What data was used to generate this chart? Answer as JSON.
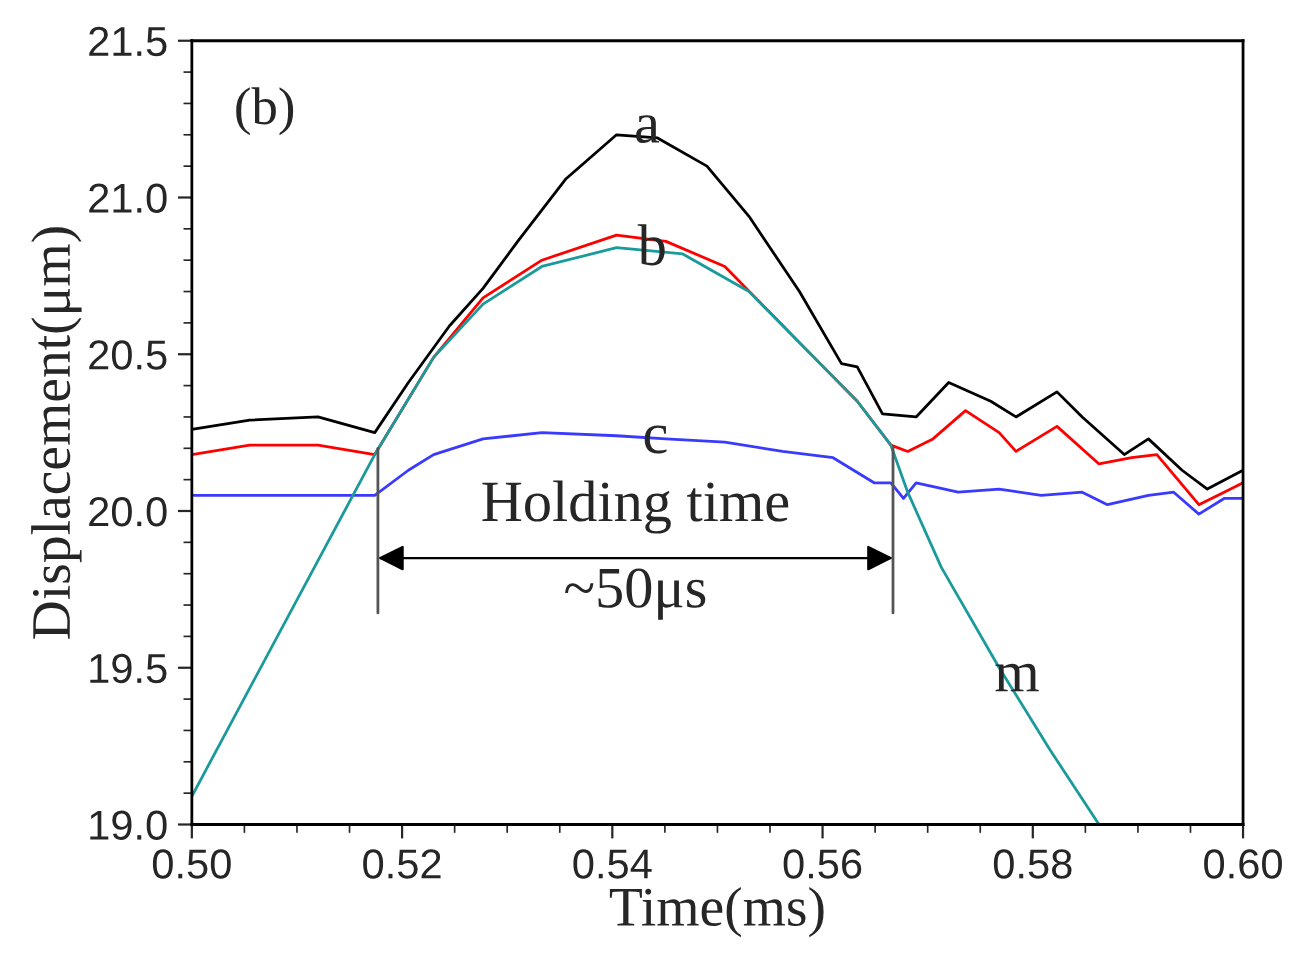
{
  "chart_data": {
    "type": "line",
    "xlabel": "Time(ms)",
    "ylabel": "Displacement(μm)",
    "xlim": [
      0.5,
      0.6
    ],
    "xticks": [
      {
        "value": 0.5,
        "label": "0.50"
      },
      {
        "value": 0.52,
        "label": "0.52"
      },
      {
        "value": 0.54,
        "label": "0.54"
      },
      {
        "value": 0.56,
        "label": "0.56"
      },
      {
        "value": 0.58,
        "label": "0.58"
      },
      {
        "value": 0.6,
        "label": "0.60"
      }
    ],
    "ylim": [
      19.0,
      21.5
    ],
    "yticks": [
      {
        "value": 19.0,
        "label": "19.0"
      },
      {
        "value": 19.5,
        "label": "19.5"
      },
      {
        "value": 20.0,
        "label": "20.0"
      },
      {
        "value": 20.5,
        "label": "20.5"
      },
      {
        "value": 21.0,
        "label": "21.0"
      },
      {
        "value": 21.5,
        "label": "21.5"
      }
    ],
    "grid": false,
    "legend": false,
    "marker": "none",
    "line_style": "solid",
    "series": [
      {
        "color": "#000000",
        "x": [
          0.5,
          0.5055,
          0.512,
          0.5174,
          0.5206,
          0.5245,
          0.5277,
          0.531,
          0.5356,
          0.5404,
          0.5443,
          0.549,
          0.553,
          0.5578,
          0.5618,
          0.5633,
          0.5657,
          0.5689,
          0.572,
          0.576,
          0.5784,
          0.5823,
          0.5847,
          0.5887,
          0.591,
          0.5942,
          0.5966,
          0.6
        ],
        "values": [
          20.26,
          20.29,
          20.3,
          20.25,
          20.41,
          20.59,
          20.71,
          20.86,
          21.06,
          21.2,
          21.19,
          21.1,
          20.94,
          20.7,
          20.47,
          20.46,
          20.31,
          20.3,
          20.41,
          20.35,
          20.3,
          20.38,
          20.3,
          20.18,
          20.23,
          20.13,
          20.07,
          20.13
        ]
      },
      {
        "color": "#ff0000",
        "x": [
          0.5,
          0.5055,
          0.512,
          0.5174,
          0.523,
          0.5277,
          0.5333,
          0.5404,
          0.5451,
          0.5507,
          0.5586,
          0.5633,
          0.5665,
          0.5681,
          0.5705,
          0.5736,
          0.5768,
          0.5784,
          0.5823,
          0.5863,
          0.5894,
          0.5918,
          0.5958,
          0.5982,
          0.6
        ],
        "values": [
          20.18,
          20.21,
          20.21,
          20.18,
          20.49,
          20.68,
          20.8,
          20.88,
          20.86,
          20.78,
          20.51,
          20.35,
          20.21,
          20.19,
          20.23,
          20.32,
          20.25,
          20.19,
          20.27,
          20.15,
          20.17,
          20.18,
          20.02,
          20.06,
          20.09
        ]
      },
      {
        "color": "#3a3aff",
        "x": [
          0.5,
          0.5174,
          0.5206,
          0.523,
          0.5277,
          0.5333,
          0.5404,
          0.5451,
          0.5507,
          0.5562,
          0.561,
          0.5649,
          0.5665,
          0.5677,
          0.5689,
          0.5729,
          0.5768,
          0.5808,
          0.5847,
          0.5871,
          0.591,
          0.5934,
          0.5958,
          0.5982,
          0.6
        ],
        "values": [
          20.05,
          20.05,
          20.13,
          20.18,
          20.23,
          20.25,
          20.24,
          20.23,
          20.22,
          20.19,
          20.17,
          20.09,
          20.09,
          20.04,
          20.09,
          20.06,
          20.07,
          20.05,
          20.06,
          20.02,
          20.05,
          20.06,
          19.99,
          20.04,
          20.04
        ]
      },
      {
        "color": "#1a9a9a",
        "x": [
          0.5,
          0.5174,
          0.523,
          0.5277,
          0.5333,
          0.5404,
          0.5467,
          0.553,
          0.5586,
          0.5633,
          0.5665,
          0.5681,
          0.5713,
          0.5768,
          0.5816,
          0.5863
        ],
        "values": [
          19.09,
          20.18,
          20.49,
          20.66,
          20.78,
          20.84,
          20.82,
          20.7,
          20.51,
          20.35,
          20.21,
          20.06,
          19.82,
          19.5,
          19.24,
          19.0
        ]
      }
    ],
    "ref_lines": [
      {
        "axis": "x",
        "value": 0.5177,
        "label": null,
        "color": "#555555"
      },
      {
        "axis": "x",
        "value": 0.5667,
        "label": null,
        "color": "#555555"
      }
    ],
    "annotations": [
      "(b)",
      "Holding time",
      "~50μs",
      {
        "text": "a",
        "x": 0.5433,
        "y": 21.22
      },
      {
        "text": "b",
        "x": 0.5438,
        "y": 20.83
      },
      {
        "text": "c",
        "x": 0.5441,
        "y": 20.23
      },
      {
        "text": "m",
        "x": 0.5785,
        "y": 19.47
      }
    ]
  }
}
